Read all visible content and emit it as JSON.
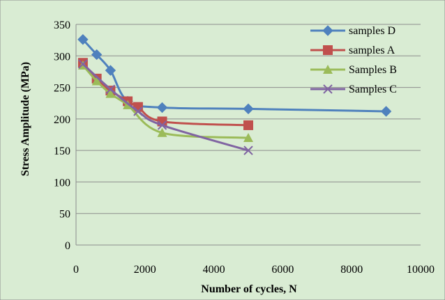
{
  "chart_data": {
    "type": "line",
    "title": "",
    "xlabel": "Number of cycles, N",
    "ylabel": "Stress Amplitude (MPa)",
    "xlim": [
      0,
      10000
    ],
    "ylim": [
      0,
      350
    ],
    "xticks": [
      0,
      2000,
      4000,
      6000,
      8000,
      10000
    ],
    "yticks": [
      0,
      50,
      100,
      150,
      200,
      250,
      300,
      350
    ],
    "xtick_labels": [
      "0",
      "2000",
      "4000",
      "6000",
      "8000",
      "10000"
    ],
    "ytick_labels": [
      "0",
      "50",
      "100",
      "150",
      "200",
      "250",
      "300",
      "350"
    ],
    "grid": "horizontal major gridlines",
    "legend_position": "top-right",
    "background_color": "#d9ecd3",
    "series": [
      {
        "name": "samples D",
        "color": "#4f81bd",
        "marker": "diamond",
        "x": [
          200,
          600,
          1000,
          1500,
          2500,
          5000,
          9000
        ],
        "y": [
          326,
          302,
          277,
          228,
          218,
          216,
          212
        ]
      },
      {
        "name": "samples A",
        "color": "#c0504d",
        "marker": "square",
        "x": [
          200,
          600,
          1000,
          1500,
          1800,
          2500,
          5000
        ],
        "y": [
          289,
          264,
          245,
          228,
          219,
          196,
          190
        ]
      },
      {
        "name": "Samples B",
        "color": "#9bbb59",
        "marker": "triangle",
        "x": [
          200,
          600,
          1000,
          1500,
          2500,
          5000
        ],
        "y": [
          285,
          260,
          240,
          222,
          178,
          170
        ]
      },
      {
        "name": "Samples C",
        "color": "#8064a2",
        "marker": "x",
        "x": [
          200,
          1000,
          1800,
          2500,
          5000
        ],
        "y": [
          287,
          247,
          212,
          190,
          150
        ]
      }
    ]
  }
}
